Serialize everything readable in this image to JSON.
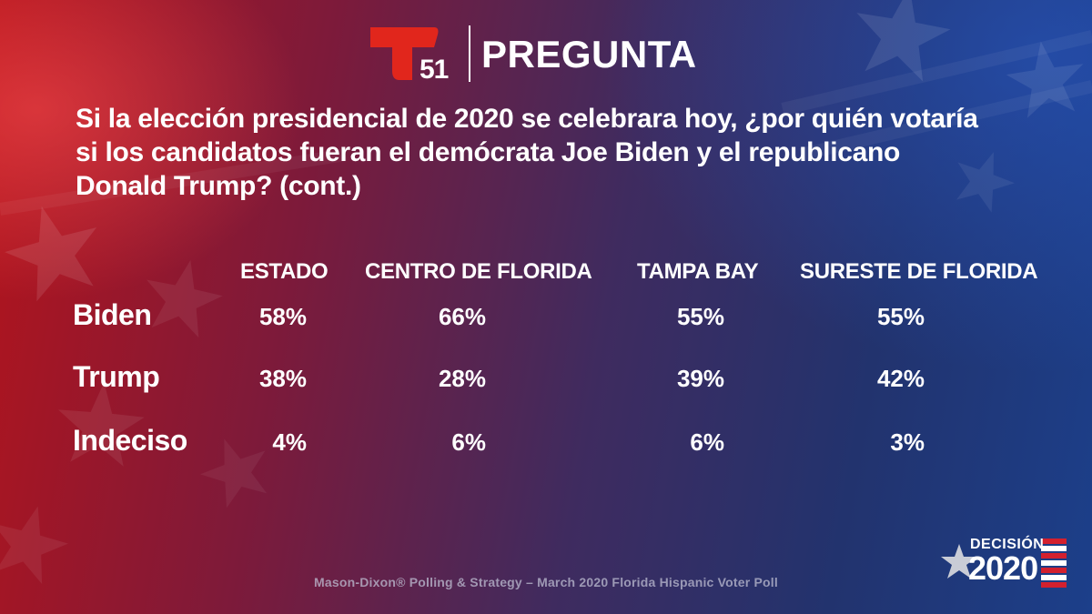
{
  "header": {
    "logo_number": "51",
    "title": "PREGUNTA"
  },
  "question": {
    "lines": [
      "Si la elección presidencial de 2020 se celebrara hoy, ¿por quién votaría",
      "si los candidatos fueran el demócrata Joe Biden y el republicano",
      "Donald Trump?  (cont.)"
    ]
  },
  "table": {
    "columns": [
      "ESTADO",
      "CENTRO DE FLORIDA",
      "TAMPA BAY",
      "SURESTE DE FLORIDA"
    ],
    "rows": [
      {
        "label": "Biden",
        "values": [
          "58%",
          "66%",
          "55%",
          "55%"
        ]
      },
      {
        "label": "Trump",
        "values": [
          "38%",
          "28%",
          "39%",
          "42%"
        ]
      },
      {
        "label": "Indeciso",
        "values": [
          "4%",
          "6%",
          "6%",
          "3%"
        ]
      }
    ]
  },
  "footer": {
    "source": "Mason-Dixon® Polling & Strategy – March 2020 Florida Hispanic Voter Poll"
  },
  "brand": {
    "top": "DECISIÓN",
    "year": "2020"
  },
  "colors": {
    "logo_red": "#e1261c",
    "text": "#ffffff",
    "footer_text": "#b9b9cf"
  },
  "icons": [
    "telemundo-t-logo",
    "star-icon",
    "flag-stripes-icon"
  ]
}
